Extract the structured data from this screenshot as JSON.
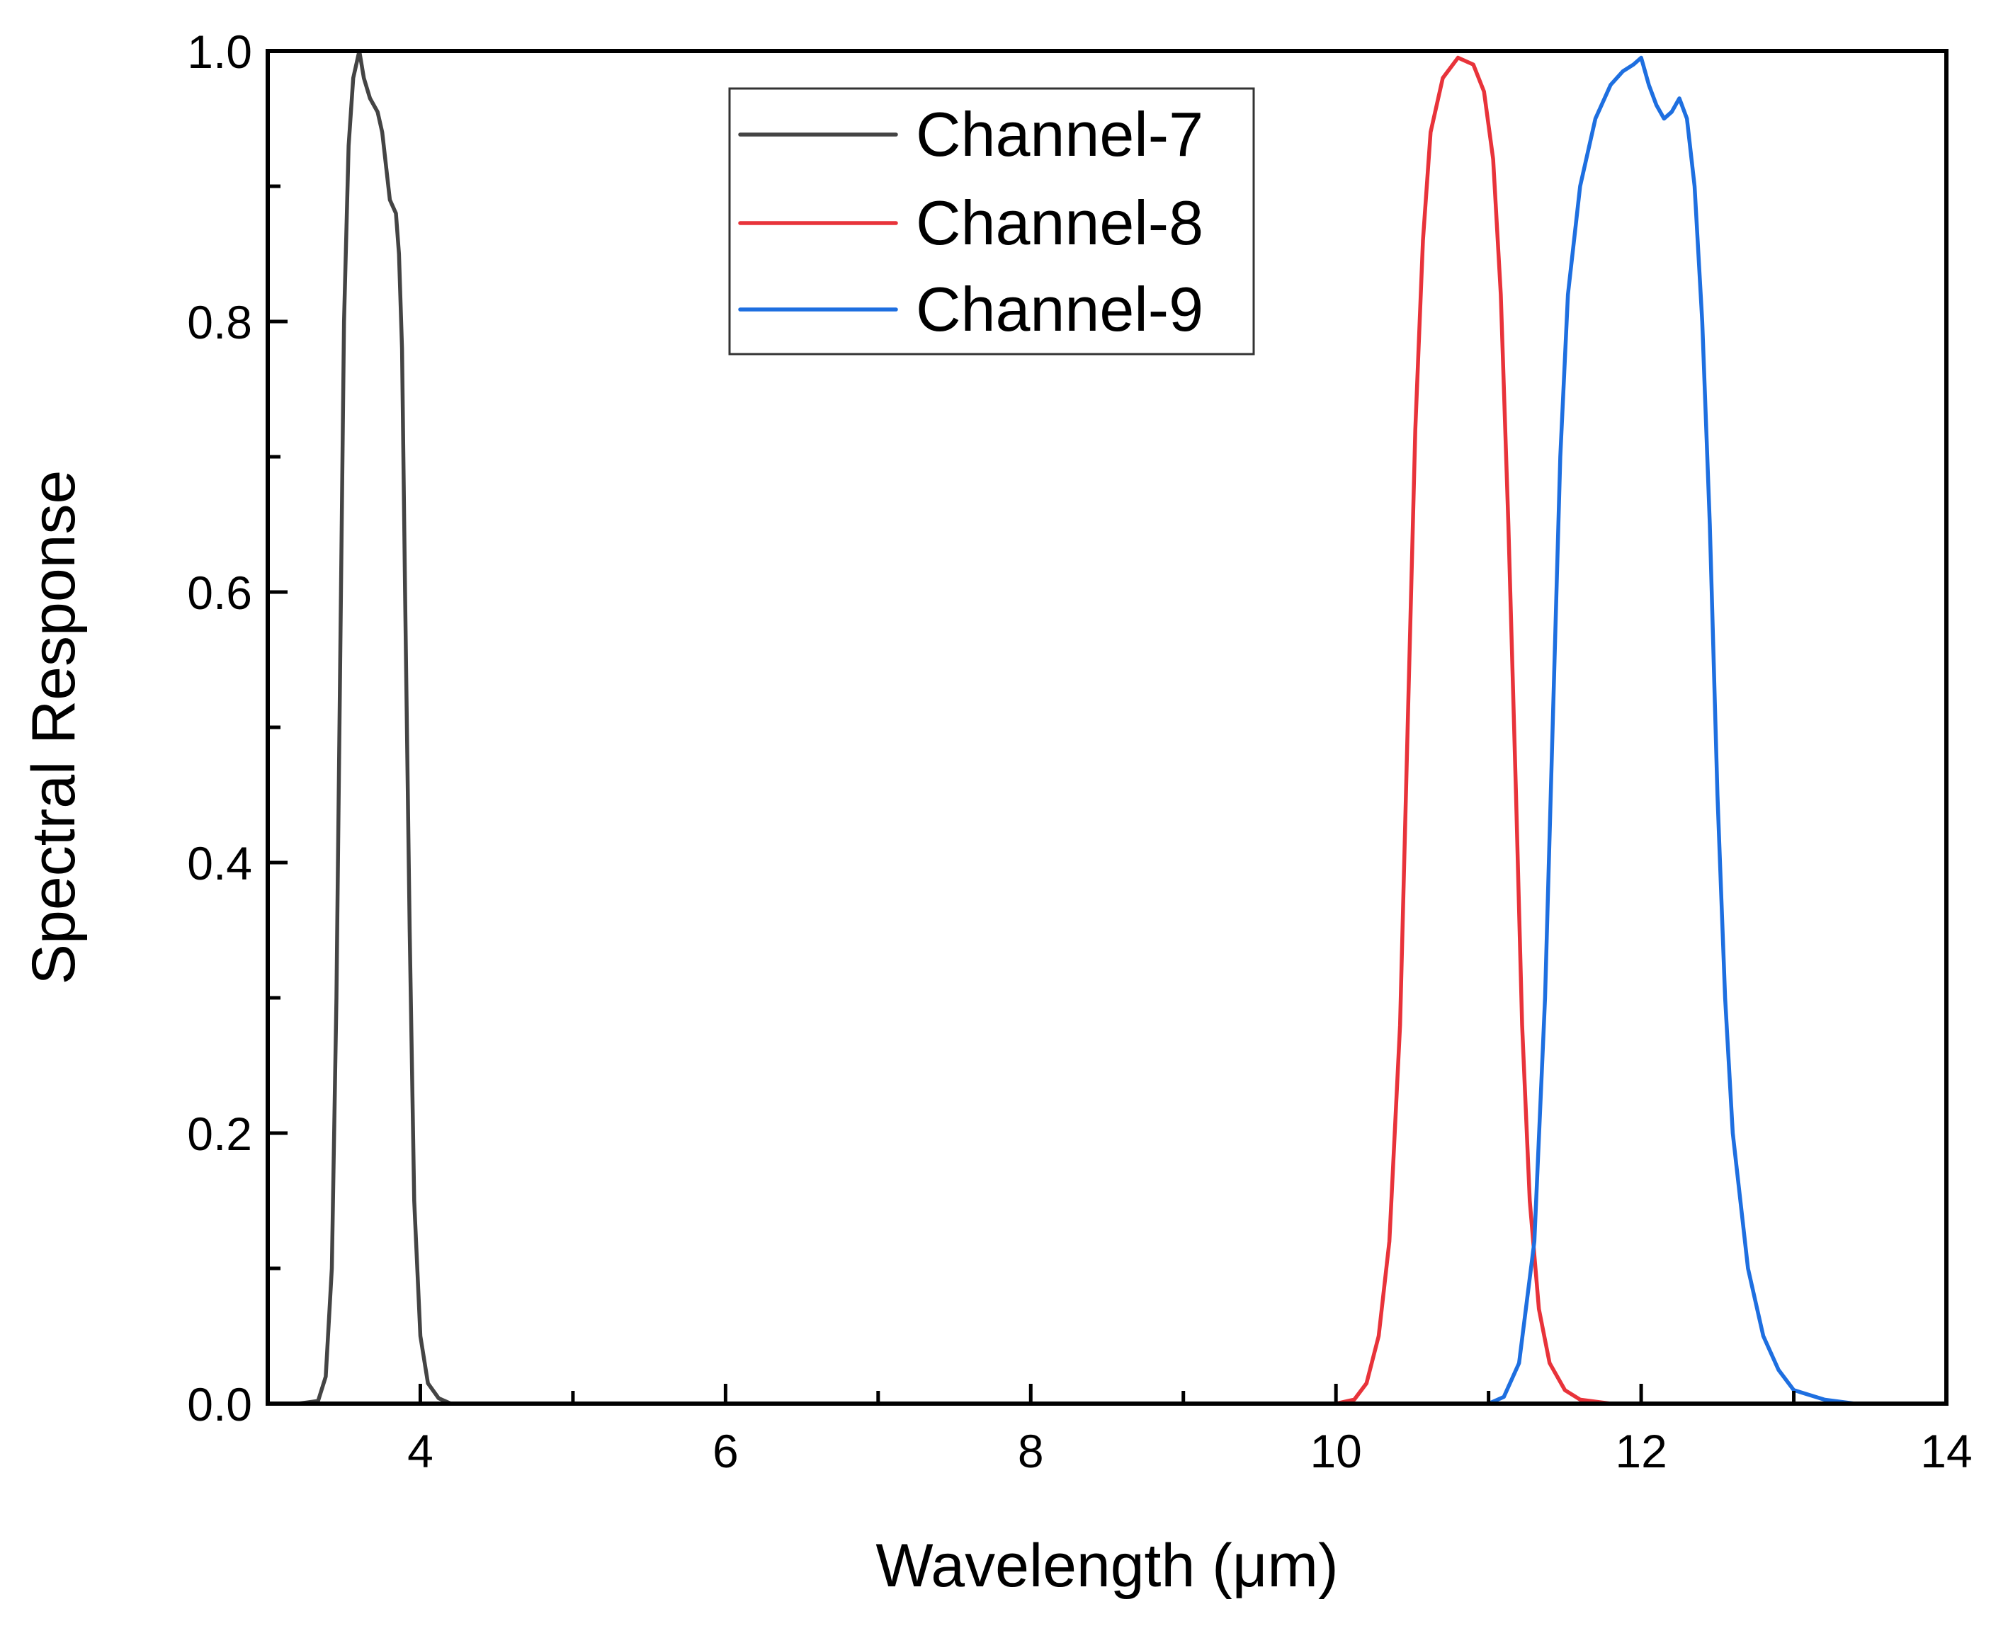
{
  "chart_data": {
    "type": "line",
    "title": "",
    "xlabel": "Wavelength (μm)",
    "ylabel": "Spectral Response",
    "xlim": [
      3,
      14
    ],
    "ylim": [
      0,
      1.0
    ],
    "x_ticks": [
      4,
      6,
      8,
      10,
      12,
      14
    ],
    "x_minor_ticks": [
      5,
      7,
      9,
      11,
      13
    ],
    "x_tick_labels": [
      "4",
      "6",
      "8",
      "10",
      "12",
      "14"
    ],
    "y_ticks": [
      0.0,
      0.2,
      0.4,
      0.6,
      0.8,
      1.0
    ],
    "y_minor_ticks": [
      0.1,
      0.3,
      0.5,
      0.7,
      0.9
    ],
    "y_tick_labels": [
      "0.0",
      "0.2",
      "0.4",
      "0.6",
      "0.8",
      "1.0"
    ],
    "grid": false,
    "legend_position": "top-center",
    "series": [
      {
        "name": "Channel-7",
        "color": "#444444",
        "points": [
          [
            3.0,
            0.0
          ],
          [
            3.2,
            0.0
          ],
          [
            3.33,
            0.002
          ],
          [
            3.38,
            0.02
          ],
          [
            3.42,
            0.1
          ],
          [
            3.45,
            0.3
          ],
          [
            3.48,
            0.6
          ],
          [
            3.5,
            0.8
          ],
          [
            3.53,
            0.93
          ],
          [
            3.56,
            0.98
          ],
          [
            3.6,
            1.0
          ],
          [
            3.63,
            0.98
          ],
          [
            3.67,
            0.965
          ],
          [
            3.72,
            0.955
          ],
          [
            3.75,
            0.94
          ],
          [
            3.78,
            0.91
          ],
          [
            3.8,
            0.89
          ],
          [
            3.84,
            0.88
          ],
          [
            3.86,
            0.85
          ],
          [
            3.88,
            0.78
          ],
          [
            3.9,
            0.6
          ],
          [
            3.93,
            0.35
          ],
          [
            3.96,
            0.15
          ],
          [
            4.0,
            0.05
          ],
          [
            4.05,
            0.015
          ],
          [
            4.12,
            0.004
          ],
          [
            4.2,
            0.0
          ],
          [
            4.5,
            0.0
          ]
        ]
      },
      {
        "name": "Channel-8",
        "color": "#e8333a",
        "points": [
          [
            9.0,
            0.0
          ],
          [
            10.0,
            0.0
          ],
          [
            10.12,
            0.003
          ],
          [
            10.2,
            0.015
          ],
          [
            10.28,
            0.05
          ],
          [
            10.35,
            0.12
          ],
          [
            10.42,
            0.28
          ],
          [
            10.47,
            0.5
          ],
          [
            10.52,
            0.72
          ],
          [
            10.57,
            0.86
          ],
          [
            10.62,
            0.94
          ],
          [
            10.7,
            0.98
          ],
          [
            10.8,
            0.995
          ],
          [
            10.9,
            0.99
          ],
          [
            10.97,
            0.97
          ],
          [
            11.03,
            0.92
          ],
          [
            11.08,
            0.82
          ],
          [
            11.13,
            0.65
          ],
          [
            11.18,
            0.45
          ],
          [
            11.22,
            0.28
          ],
          [
            11.27,
            0.15
          ],
          [
            11.33,
            0.07
          ],
          [
            11.4,
            0.03
          ],
          [
            11.5,
            0.01
          ],
          [
            11.6,
            0.003
          ],
          [
            11.8,
            0.0
          ],
          [
            12.6,
            0.0
          ]
        ]
      },
      {
        "name": "Channel-9",
        "color": "#1e6fe0",
        "points": [
          [
            10.0,
            0.0
          ],
          [
            11.0,
            0.0
          ],
          [
            11.1,
            0.005
          ],
          [
            11.2,
            0.03
          ],
          [
            11.3,
            0.12
          ],
          [
            11.37,
            0.3
          ],
          [
            11.42,
            0.5
          ],
          [
            11.47,
            0.7
          ],
          [
            11.52,
            0.82
          ],
          [
            11.6,
            0.9
          ],
          [
            11.7,
            0.95
          ],
          [
            11.8,
            0.975
          ],
          [
            11.88,
            0.985
          ],
          [
            11.95,
            0.99
          ],
          [
            12.0,
            0.995
          ],
          [
            12.05,
            0.975
          ],
          [
            12.1,
            0.96
          ],
          [
            12.15,
            0.95
          ],
          [
            12.2,
            0.955
          ],
          [
            12.25,
            0.965
          ],
          [
            12.3,
            0.95
          ],
          [
            12.35,
            0.9
          ],
          [
            12.4,
            0.8
          ],
          [
            12.45,
            0.65
          ],
          [
            12.5,
            0.45
          ],
          [
            12.55,
            0.3
          ],
          [
            12.6,
            0.2
          ],
          [
            12.7,
            0.1
          ],
          [
            12.8,
            0.05
          ],
          [
            12.9,
            0.025
          ],
          [
            13.0,
            0.01
          ],
          [
            13.2,
            0.003
          ],
          [
            13.4,
            0.0
          ],
          [
            14.0,
            0.0
          ]
        ]
      }
    ]
  }
}
